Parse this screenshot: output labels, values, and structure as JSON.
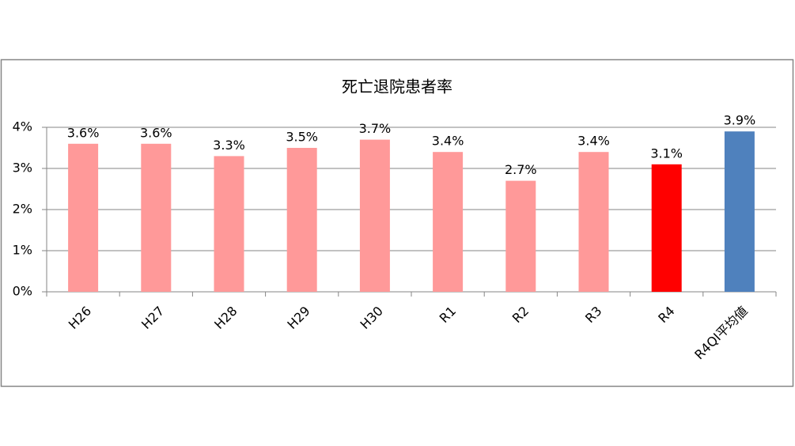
{
  "chart_data": {
    "type": "bar",
    "title": "死亡退院患者率",
    "categories": [
      "H26",
      "H27",
      "H28",
      "H29",
      "H30",
      "R1",
      "R2",
      "R3",
      "R4",
      "R4QI平均値"
    ],
    "values": [
      3.6,
      3.6,
      3.3,
      3.5,
      3.7,
      3.4,
      2.7,
      3.4,
      3.1,
      3.9
    ],
    "value_labels": [
      "3.6%",
      "3.6%",
      "3.3%",
      "3.5%",
      "3.7%",
      "3.4%",
      "2.7%",
      "3.4%",
      "3.1%",
      "3.9%"
    ],
    "colors": [
      "#ff9999",
      "#ff9999",
      "#ff9999",
      "#ff9999",
      "#ff9999",
      "#ff9999",
      "#ff9999",
      "#ff9999",
      "#ff0000",
      "#4f81bd"
    ],
    "ylim": [
      0,
      4
    ],
    "yticks": [
      {
        "value": 0,
        "label": "0%"
      },
      {
        "value": 1,
        "label": "1%"
      },
      {
        "value": 2,
        "label": "2%"
      },
      {
        "value": 3,
        "label": "3%"
      },
      {
        "value": 4,
        "label": "4%"
      }
    ],
    "grid": true
  }
}
